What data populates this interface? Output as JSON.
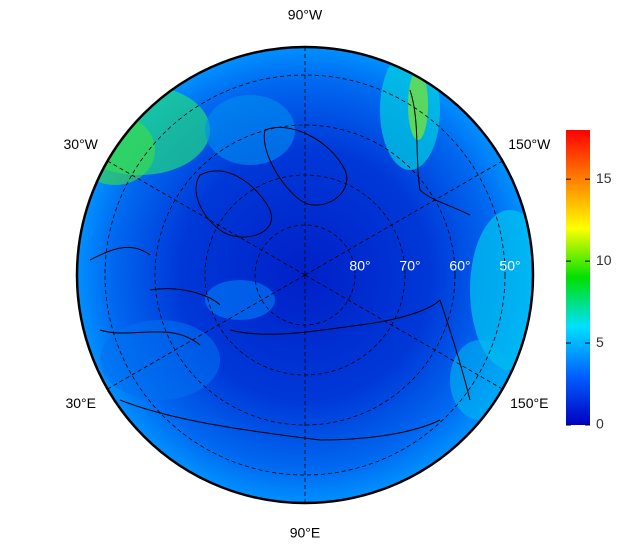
{
  "map": {
    "lon_labels": [
      {
        "value": -90,
        "label": "90°W"
      },
      {
        "value": -30,
        "label": "30°W"
      },
      {
        "value": -150,
        "label": "150°W"
      },
      {
        "value": 30,
        "label": "30°E"
      },
      {
        "value": 150,
        "label": "150°E"
      },
      {
        "value": 90,
        "label": "90°E"
      }
    ],
    "lat_labels": [
      {
        "value": 80,
        "label": "80°"
      },
      {
        "value": 70,
        "label": "70°"
      },
      {
        "value": 60,
        "label": "60°"
      },
      {
        "value": 50,
        "label": "50°"
      }
    ]
  },
  "colorbar": {
    "lim": [
      0,
      18
    ],
    "ticks": [
      0,
      5,
      10,
      15
    ],
    "colors": [
      "#0000c0",
      "#0060ff",
      "#00e0ff",
      "#00e000",
      "#ffff00",
      "#ff8000",
      "#ff0000"
    ]
  }
}
